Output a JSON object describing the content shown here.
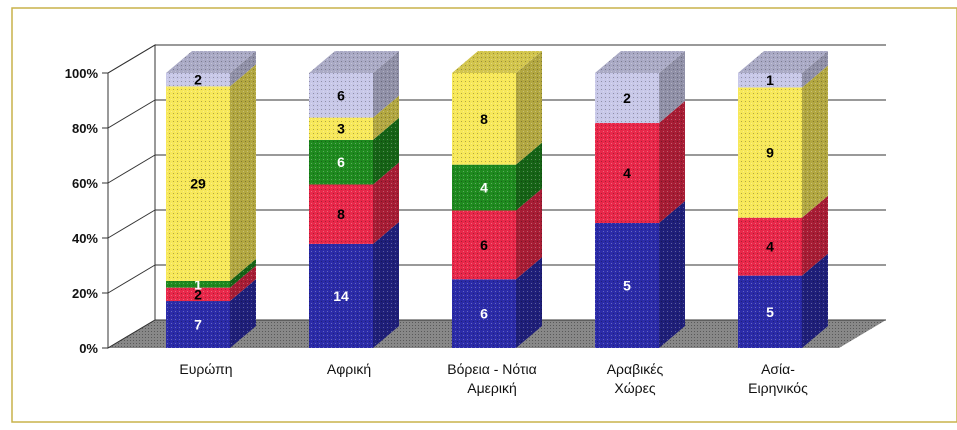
{
  "chart_data": {
    "type": "bar",
    "stacked": true,
    "percent": true,
    "view": "3d",
    "categories": [
      [
        "Ευρώπη"
      ],
      [
        "Αφρική"
      ],
      [
        "Βόρεια - Νότια",
        "Αμερική"
      ],
      [
        "Αραβικές",
        "Χώρες"
      ],
      [
        "Ασία-",
        "Ειρηνικός"
      ]
    ],
    "series_colors": [
      "#2b2ba8",
      "#e8284a",
      "#1f8a1f",
      "#f7e85a",
      "#c8c8e8"
    ],
    "label_colors": [
      "#ffffff",
      "#000000",
      "#ffffff",
      "#000000",
      "#000000"
    ],
    "series": [
      {
        "values": [
          7,
          14,
          6,
          5,
          5
        ]
      },
      {
        "values": [
          2,
          8,
          6,
          4,
          4
        ]
      },
      {
        "values": [
          1,
          6,
          4,
          0,
          0
        ]
      },
      {
        "values": [
          29,
          3,
          8,
          0,
          9
        ]
      },
      {
        "values": [
          2,
          6,
          0,
          2,
          1
        ]
      }
    ],
    "ylim": [
      0,
      100
    ],
    "yticks": [
      "0%",
      "20%",
      "40%",
      "60%",
      "80%",
      "100%"
    ],
    "grid": true,
    "legend": "none"
  }
}
